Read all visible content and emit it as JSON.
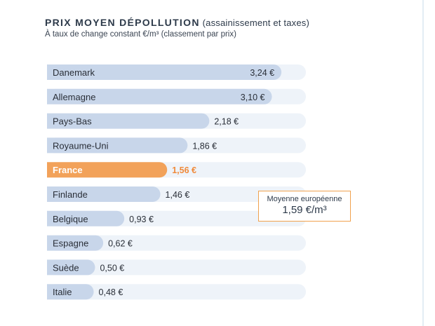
{
  "header": {
    "title_bold": "PRIX MOYEN DÉPOLLUTION",
    "title_rest": "(assainissement et taxes)",
    "subtitle": "À taux de change constant €/m³ (classement par prix)"
  },
  "average_box": {
    "label": "Moyenne européenne",
    "value": "1,59 €/m³"
  },
  "colors": {
    "bar": "#c8d6ea",
    "track": "#eef3f9",
    "highlight": "#f2a25a",
    "highlight_text": "#f08a3a",
    "box_border": "#f0a24e"
  },
  "chart_data": {
    "type": "bar",
    "orientation": "horizontal",
    "title": "PRIX MOYEN DÉPOLLUTION (assainissement et taxes)",
    "subtitle": "À taux de change constant €/m³ (classement par prix)",
    "categories": [
      "Danemark",
      "Allemagne",
      "Pays-Bas",
      "Royaume-Uni",
      "France",
      "Finlande",
      "Belgique",
      "Espagne",
      "Suède",
      "Italie"
    ],
    "values": [
      3.24,
      3.1,
      2.18,
      1.86,
      1.56,
      1.46,
      0.93,
      0.62,
      0.5,
      0.48
    ],
    "value_labels": [
      "3,24 €",
      "3,10 €",
      "2,18 €",
      "1,86 €",
      "1,56 €",
      "1,46 €",
      "0,93 €",
      "0,62 €",
      "0,50 €",
      "0,48 €"
    ],
    "highlight_category": "France",
    "unit": "€/m³",
    "xlim": [
      0,
      3.6
    ],
    "annotation": {
      "label": "Moyenne européenne",
      "value": 1.59,
      "text": "1,59 €/m³"
    },
    "grid": false,
    "legend": "none"
  }
}
